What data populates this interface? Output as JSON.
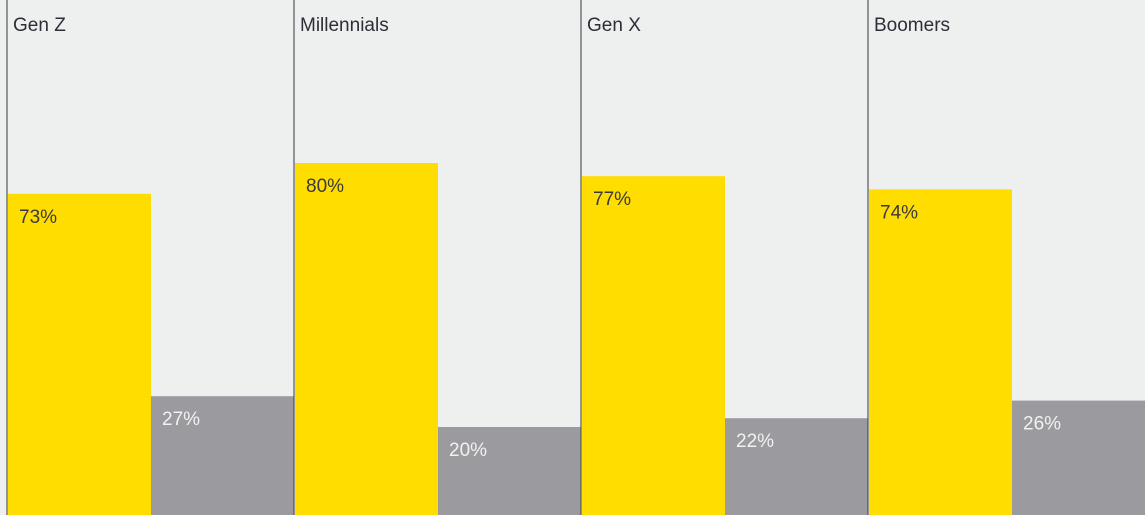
{
  "chart_data": {
    "type": "bar",
    "categories": [
      "Gen Z",
      "Millennials",
      "Gen X",
      "Boomers"
    ],
    "series": [
      {
        "values": [
          73,
          80,
          77,
          74
        ],
        "labels": [
          "73%",
          "80%",
          "77%",
          "74%"
        ]
      },
      {
        "values": [
          27,
          20,
          22,
          26
        ],
        "labels": [
          "27%",
          "20%",
          "22%",
          "26%"
        ]
      }
    ],
    "ylim": [
      0,
      100
    ],
    "colors": [
      "#ffdd00",
      "#9b9b9f"
    ],
    "grid": false,
    "background": "#eeefef"
  }
}
